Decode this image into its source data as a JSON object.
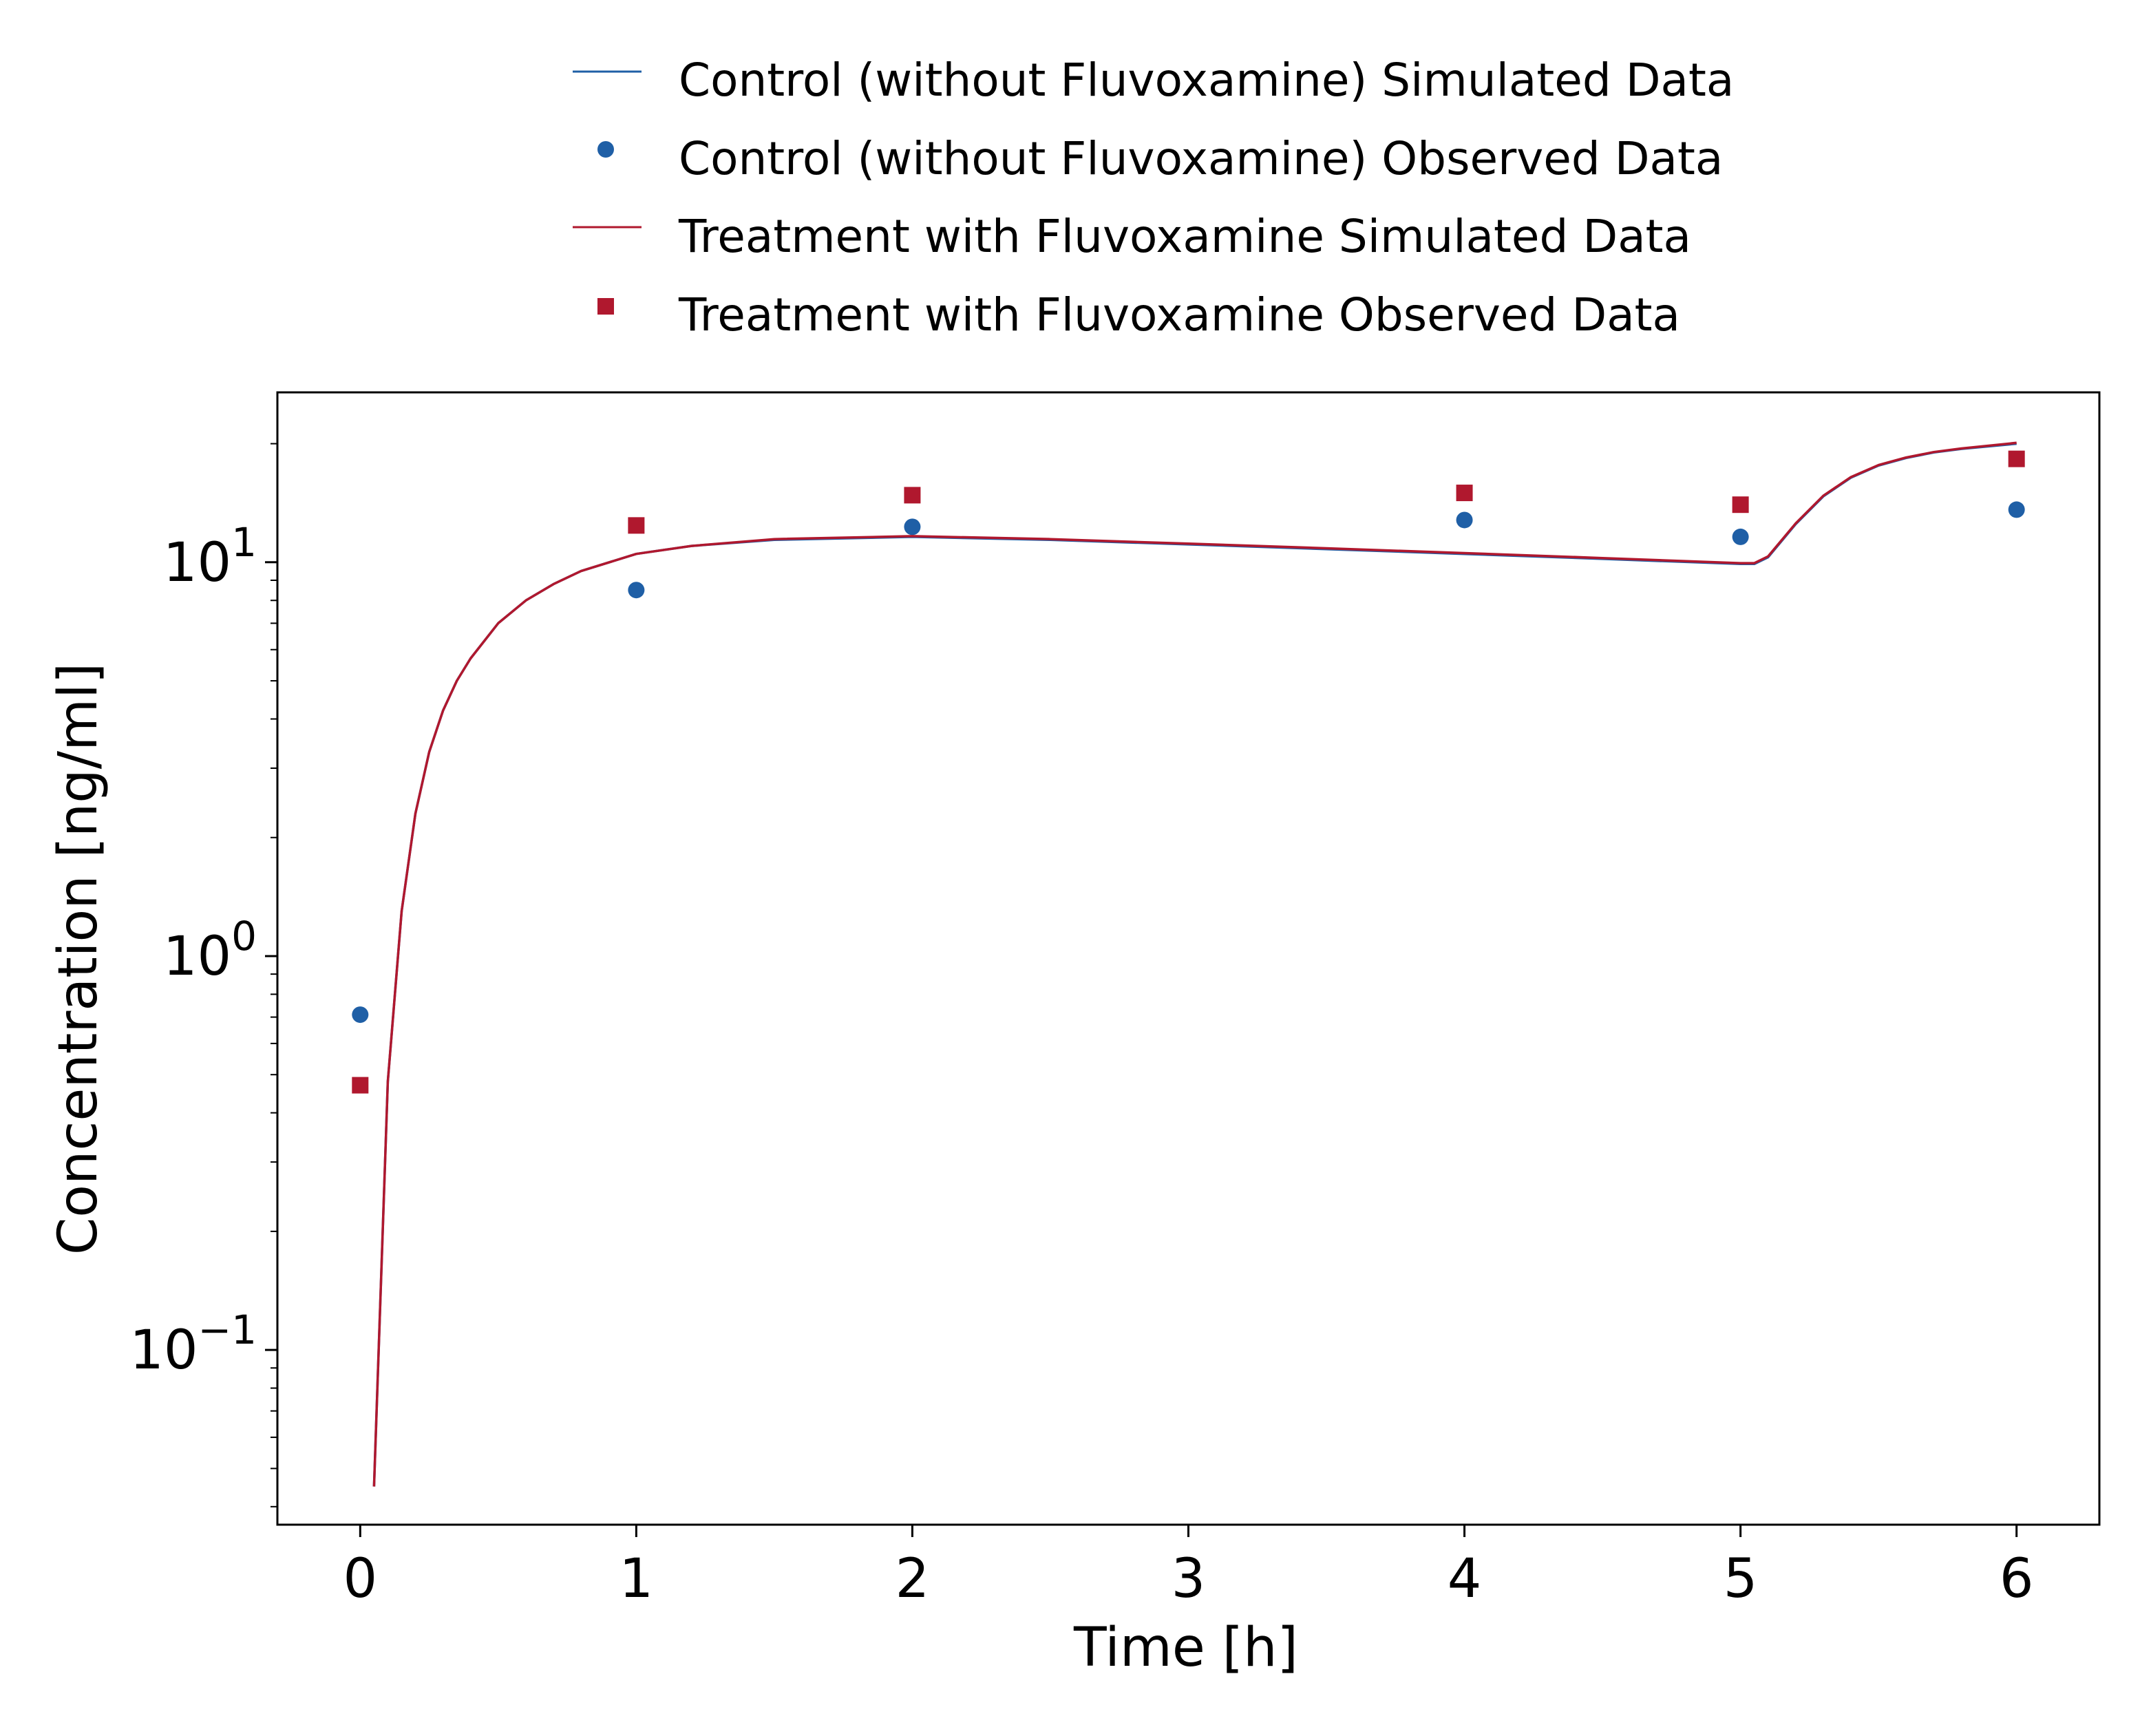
{
  "chart_data": {
    "type": "line",
    "title": "",
    "xlabel": "Time [h]",
    "ylabel": "Concentration [ng/ml]",
    "xlim": [
      -0.3,
      6.3
    ],
    "ylim": [
      0.036,
      27
    ],
    "yscale": "log",
    "x_ticks": [
      0,
      1,
      2,
      3,
      4,
      5,
      6
    ],
    "x_tick_labels": [
      "0",
      "1",
      "2",
      "3",
      "4",
      "5",
      "6"
    ],
    "y_ticks": [
      {
        "value": 0.1,
        "base": "10",
        "exp": "−1"
      },
      {
        "value": 1,
        "base": "10",
        "exp": "0"
      },
      {
        "value": 10,
        "base": "10",
        "exp": "1"
      }
    ],
    "grid": false,
    "legend_position": "top-center, above plot",
    "colors": {
      "control": "#1f5fa6",
      "treatment": "#b0182e"
    },
    "series": [
      {
        "name": "Control (without Fluvoxamine) Simulated Data",
        "kind": "line",
        "color": "#1f5fa6",
        "x": [
          0.05,
          0.1,
          0.15,
          0.2,
          0.25,
          0.3,
          0.35,
          0.4,
          0.5,
          0.6,
          0.7,
          0.8,
          1.0,
          1.2,
          1.5,
          2.0,
          2.5,
          3.0,
          3.5,
          4.0,
          4.5,
          5.0,
          5.05,
          5.1,
          5.2,
          5.3,
          5.4,
          5.5,
          5.6,
          5.7,
          5.8,
          6.0
        ],
        "y": [
          0.045,
          0.48,
          1.3,
          2.3,
          3.3,
          4.2,
          5.0,
          5.7,
          7.0,
          8.0,
          8.8,
          9.5,
          10.5,
          11.0,
          11.4,
          11.6,
          11.4,
          11.1,
          10.8,
          10.5,
          10.2,
          9.9,
          9.9,
          10.3,
          12.5,
          14.7,
          16.4,
          17.6,
          18.4,
          19.0,
          19.4,
          20.0
        ]
      },
      {
        "name": "Control (without Fluvoxamine) Observed Data",
        "kind": "scatter",
        "marker": "circle",
        "color": "#1f5fa6",
        "x": [
          0,
          1,
          2,
          4,
          5,
          6
        ],
        "y": [
          0.71,
          8.5,
          12.3,
          12.8,
          11.6,
          13.6
        ]
      },
      {
        "name": "Treatment with Fluvoxamine Simulated Data",
        "kind": "line",
        "color": "#b0182e",
        "x": [
          0.05,
          0.1,
          0.15,
          0.2,
          0.25,
          0.3,
          0.35,
          0.4,
          0.5,
          0.6,
          0.7,
          0.8,
          1.0,
          1.2,
          1.5,
          2.0,
          2.5,
          3.0,
          3.5,
          4.0,
          4.5,
          5.0,
          5.05,
          5.1,
          5.2,
          5.3,
          5.4,
          5.5,
          5.6,
          5.7,
          5.8,
          6.0
        ],
        "y": [
          0.045,
          0.48,
          1.3,
          2.3,
          3.3,
          4.2,
          5.0,
          5.7,
          7.0,
          8.0,
          8.8,
          9.5,
          10.5,
          11.0,
          11.45,
          11.65,
          11.45,
          11.15,
          10.85,
          10.55,
          10.25,
          9.95,
          9.95,
          10.35,
          12.55,
          14.75,
          16.45,
          17.65,
          18.45,
          19.05,
          19.45,
          20.1
        ]
      },
      {
        "name": "Treatment with Fluvoxamine Observed Data",
        "kind": "scatter",
        "marker": "square",
        "color": "#b0182e",
        "x": [
          0,
          1,
          2,
          4,
          5,
          6
        ],
        "y": [
          0.47,
          12.4,
          14.8,
          15.0,
          14.0,
          18.3
        ]
      }
    ]
  }
}
